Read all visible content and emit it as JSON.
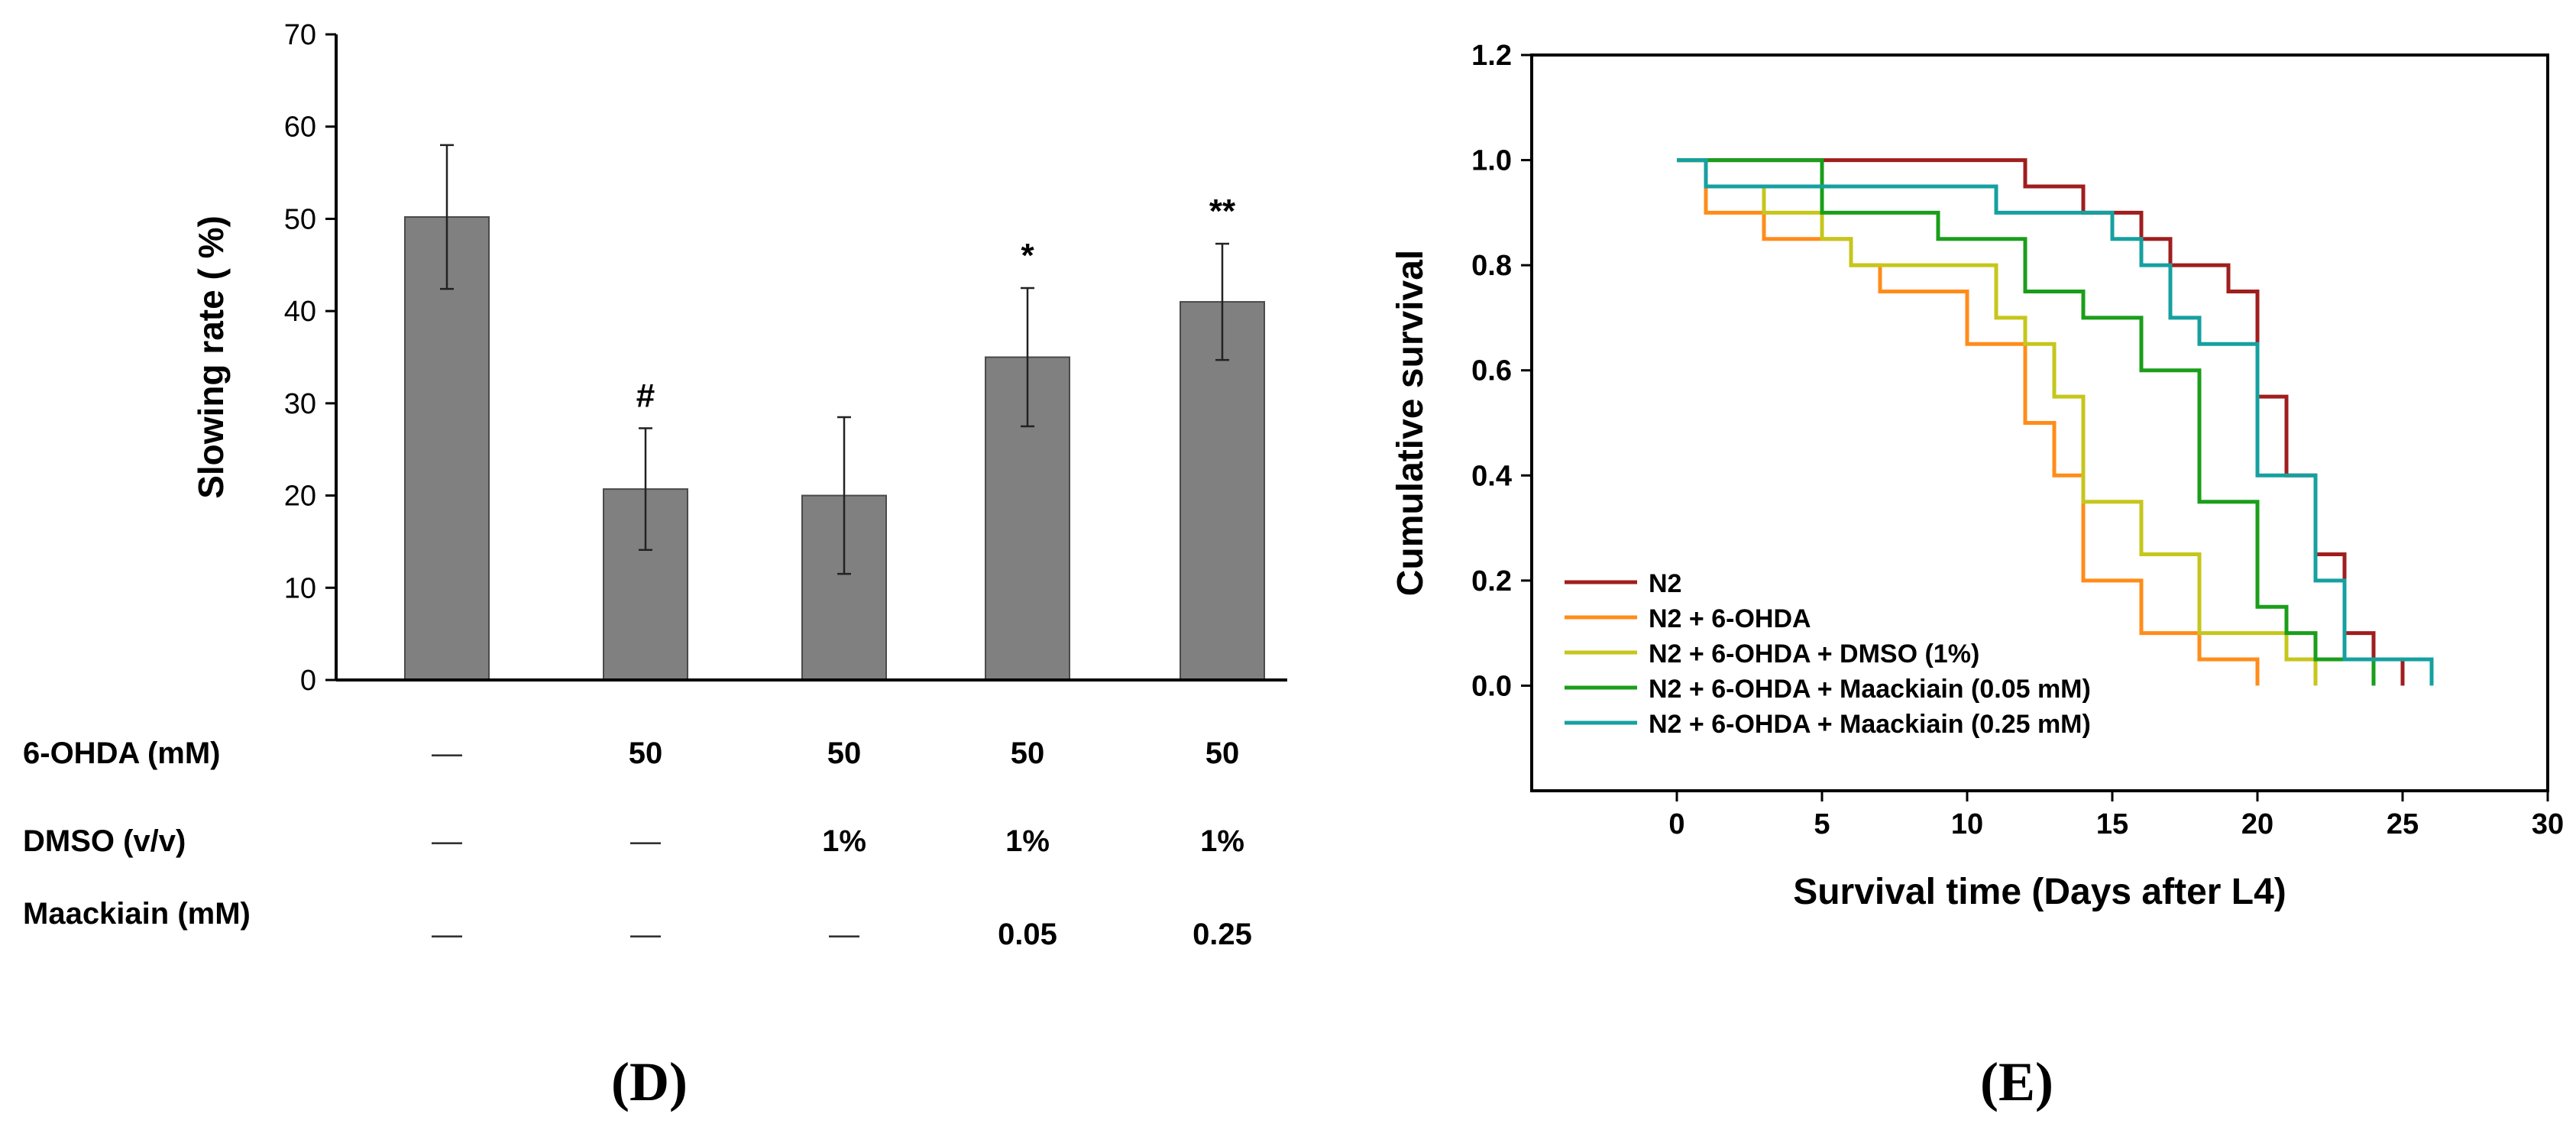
{
  "panel_labels": {
    "left": "(D)",
    "right": "(E)"
  },
  "chart_data": [
    {
      "type": "bar",
      "ylabel": "Slowing rate ( %)",
      "ylim": [
        0,
        70
      ],
      "yticks": [
        "0",
        "10",
        "20",
        "30",
        "40",
        "50",
        "60",
        "70"
      ],
      "bar_color": "#808080",
      "values": [
        50.2,
        20.7,
        20.0,
        35.0,
        41.0
      ],
      "errors": [
        7.8,
        6.6,
        8.5,
        7.5,
        6.3
      ],
      "significance": [
        "",
        "#",
        "",
        "*",
        "**"
      ],
      "conditions": [
        {
          "label": "6-OHDA (mM)",
          "values": [
            "—",
            "50",
            "50",
            "50",
            "50"
          ]
        },
        {
          "label": "DMSO (v/v)",
          "values": [
            "—",
            "—",
            "1%",
            "1%",
            "1%"
          ]
        },
        {
          "label": "Maackiain  (mM)",
          "values": [
            "—",
            "—",
            "—",
            "0.05",
            "0.25"
          ]
        }
      ]
    },
    {
      "type": "line",
      "step": true,
      "xlabel": "Survival time (Days after L4)",
      "ylabel": "Cumulative survival",
      "xlim": [
        -5,
        30
      ],
      "ylim": [
        -0.2,
        1.2
      ],
      "xticks": [
        "0",
        "5",
        "10",
        "15",
        "20",
        "25",
        "30"
      ],
      "yticks": [
        "0.0",
        "0.2",
        "0.4",
        "0.6",
        "0.8",
        "1.0",
        "1.2"
      ],
      "legend_position": "bottom-left",
      "series": [
        {
          "name": "N2",
          "color": "#a01e1e",
          "x": [
            0,
            12,
            14,
            16,
            17,
            18,
            19,
            20,
            21,
            22,
            23,
            24,
            25
          ],
          "y": [
            1.0,
            0.95,
            0.9,
            0.85,
            0.8,
            0.8,
            0.75,
            0.55,
            0.4,
            0.25,
            0.1,
            0.05,
            0.0
          ]
        },
        {
          "name": "N2 + 6-OHDA",
          "color": "#ff8c1a",
          "x": [
            0,
            1,
            3,
            6,
            7,
            10,
            12,
            13,
            14,
            16,
            18,
            20
          ],
          "y": [
            1.0,
            0.9,
            0.85,
            0.8,
            0.75,
            0.65,
            0.5,
            0.4,
            0.2,
            0.1,
            0.05,
            0.0
          ]
        },
        {
          "name": "N2 + 6-OHDA + DMSO (1%)",
          "color": "#c6c61c",
          "x": [
            0,
            1,
            3,
            5,
            6,
            8,
            11,
            12,
            13,
            14,
            16,
            18,
            21,
            22
          ],
          "y": [
            1.0,
            0.95,
            0.9,
            0.85,
            0.8,
            0.8,
            0.7,
            0.65,
            0.55,
            0.35,
            0.25,
            0.1,
            0.05,
            0.0
          ]
        },
        {
          "name": "N2 + 6-OHDA + Maackiain (0.05 mM)",
          "color": "#1a9e1a",
          "x": [
            0,
            5,
            9,
            12,
            14,
            16,
            18,
            20,
            21,
            22,
            24
          ],
          "y": [
            1.0,
            0.9,
            0.85,
            0.75,
            0.7,
            0.6,
            0.35,
            0.15,
            0.1,
            0.05,
            0.0
          ]
        },
        {
          "name": "N2 + 6-OHDA + Maackiain (0.25 mM)",
          "color": "#16a0a0",
          "x": [
            0,
            1,
            11,
            15,
            16,
            17,
            18,
            20,
            21,
            22,
            23,
            25,
            26
          ],
          "y": [
            1.0,
            0.95,
            0.9,
            0.85,
            0.8,
            0.7,
            0.65,
            0.4,
            0.4,
            0.2,
            0.05,
            0.05,
            0.0
          ]
        }
      ]
    }
  ]
}
